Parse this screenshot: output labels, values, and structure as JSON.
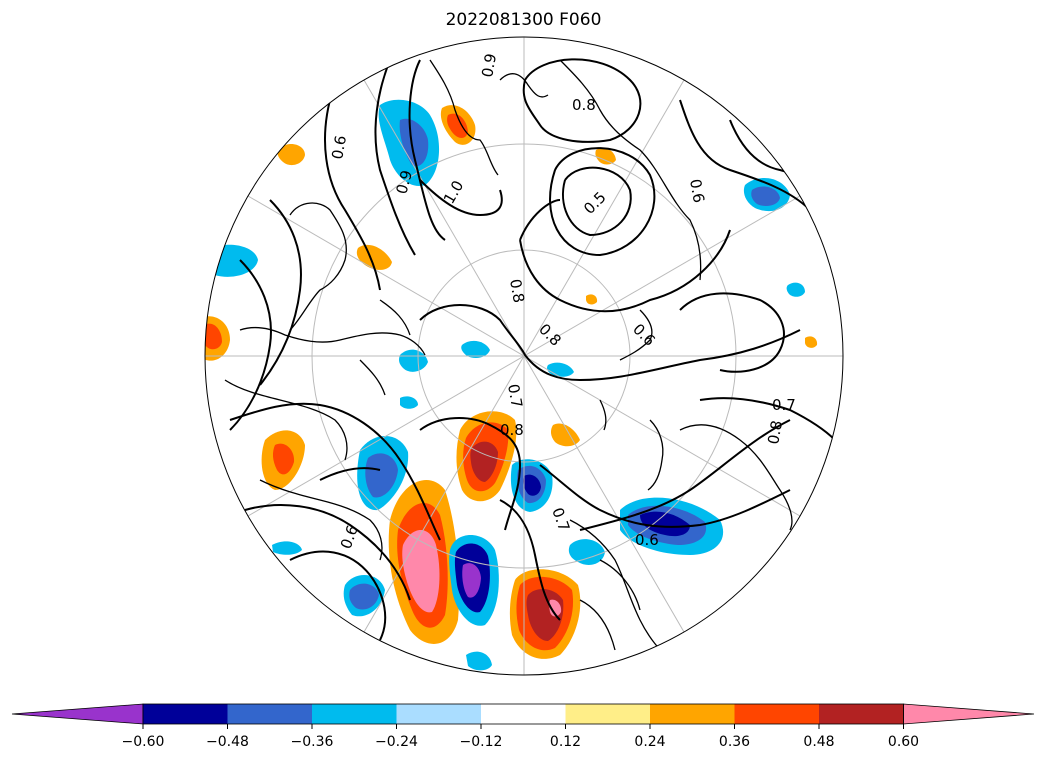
{
  "title": "2022081300 F060",
  "colorbar": {
    "extend": "both",
    "colors": [
      "#9933cc",
      "#000099",
      "#3366cc",
      "#00bbee",
      "#aaddff",
      "#ffffff",
      "#ffee88",
      "#ffa500",
      "#ff4500",
      "#b22222",
      "#ff88aa"
    ],
    "ticks": [
      "−0.60",
      "−0.48",
      "−0.36",
      "−0.24",
      "−0.12",
      "0.12",
      "0.24",
      "0.36",
      "0.48",
      "0.60"
    ]
  },
  "contour_labels": [
    "0.8",
    "0.6",
    "0.9",
    "1.0",
    "0.5",
    "0.9",
    "0.6",
    "0.8",
    "0.7",
    "0.8",
    "0.6",
    "0.7",
    "0.8",
    "0.6",
    "0.7",
    "0.8",
    "0.6"
  ],
  "legend_colors": {
    "land": "#ffffff",
    "coastline": "#000000",
    "graticule": "#bbbbbb",
    "contour": "#000000"
  }
}
